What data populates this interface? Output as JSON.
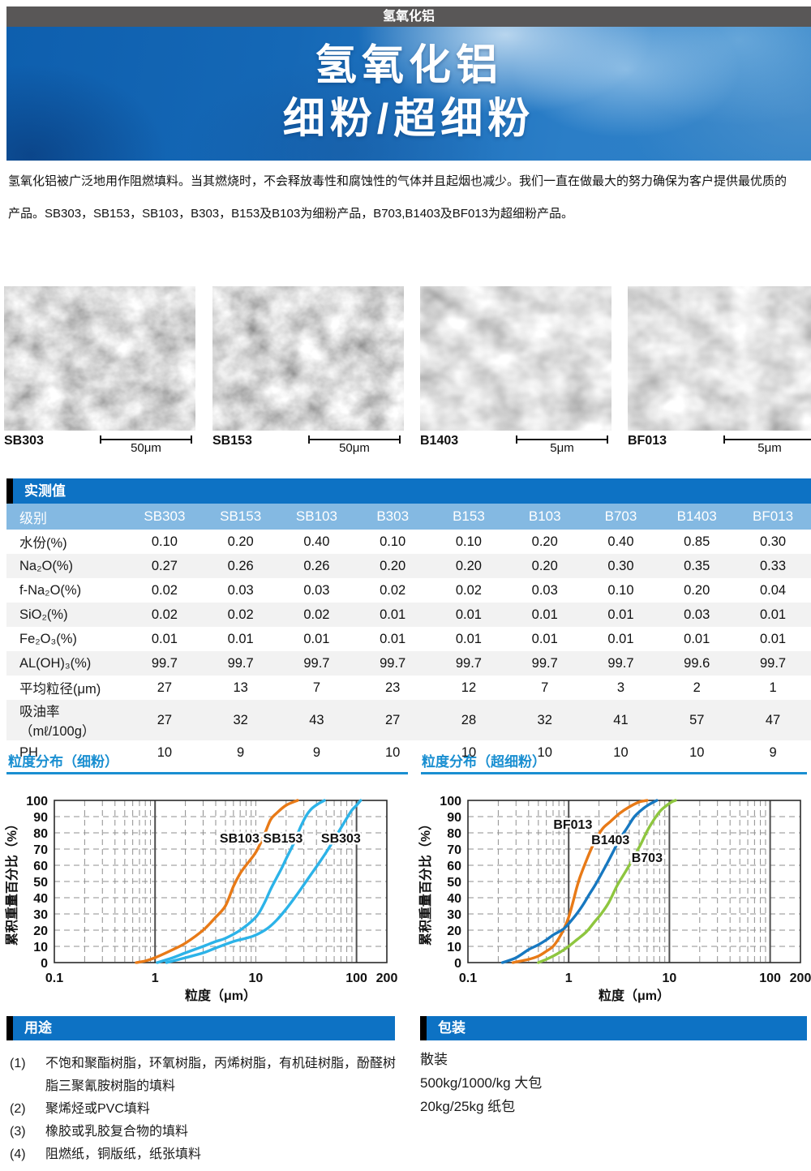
{
  "page": {
    "header_tag": "氢氧化铝"
  },
  "banner": {
    "line1": "氢氧化铝",
    "line2": "细粉/超细粉"
  },
  "intro": {
    "lines": [
      "氢氧化铝被广泛地用作阻燃填料。当其燃烧时，不会释放毒性和腐蚀性的气体并且起烟也减少。我们一直在做最大的努力确保为客户提供最优质的",
      "产品。SB303，SB153，SB103，B303，B153及B103为细粉产品，B703,B1403及BF013为超细粉产品。"
    ]
  },
  "sem_images": [
    {
      "label": "SB303",
      "scale": "50μm"
    },
    {
      "label": "SB153",
      "scale": "50μm"
    },
    {
      "label": "B1403",
      "scale": "5μm"
    },
    {
      "label": "BF013",
      "scale": "5μm"
    }
  ],
  "table": {
    "title": "实测值",
    "corner": "级别",
    "columns": [
      "SB303",
      "SB153",
      "SB103",
      "B303",
      "B153",
      "B103",
      "B703",
      "B1403",
      "BF013"
    ],
    "rows": [
      {
        "label": "水份(%)",
        "values": [
          "0.10",
          "0.20",
          "0.40",
          "0.10",
          "0.10",
          "0.20",
          "0.40",
          "0.85",
          "0.30"
        ]
      },
      {
        "label": "Na₂O(%)",
        "values": [
          "0.27",
          "0.26",
          "0.26",
          "0.20",
          "0.20",
          "0.20",
          "0.30",
          "0.35",
          "0.33"
        ]
      },
      {
        "label": "f-Na₂O(%)",
        "values": [
          "0.02",
          "0.03",
          "0.03",
          "0.02",
          "0.02",
          "0.03",
          "0.10",
          "0.20",
          "0.04"
        ]
      },
      {
        "label": "SiO₂(%)",
        "values": [
          "0.02",
          "0.02",
          "0.02",
          "0.01",
          "0.01",
          "0.01",
          "0.01",
          "0.03",
          "0.01"
        ]
      },
      {
        "label": "Fe₂O₃(%)",
        "values": [
          "0.01",
          "0.01",
          "0.01",
          "0.01",
          "0.01",
          "0.01",
          "0.01",
          "0.01",
          "0.01"
        ]
      },
      {
        "label": "AL(OH)₃(%)",
        "values": [
          "99.7",
          "99.7",
          "99.7",
          "99.7",
          "99.7",
          "99.7",
          "99.7",
          "99.6",
          "99.7"
        ]
      },
      {
        "label": "平均粒径(μm)",
        "values": [
          "27",
          "13",
          "7",
          "23",
          "12",
          "7",
          "3",
          "2",
          "1"
        ]
      },
      {
        "label": "吸油率（mℓ/100g）",
        "values": [
          "27",
          "32",
          "43",
          "27",
          "28",
          "32",
          "41",
          "57",
          "47"
        ]
      },
      {
        "label": "PH",
        "values": [
          "10",
          "9",
          "9",
          "10",
          "10",
          "10",
          "10",
          "10",
          "9"
        ]
      }
    ]
  },
  "chart_data": [
    {
      "type": "line",
      "title": "粒度分布（细粉）",
      "xlabel": "粒度（μm）",
      "ylabel": "累积重量百分比（%）",
      "xscale": "log",
      "xlim": [
        0.1,
        200
      ],
      "ylim": [
        0,
        100
      ],
      "x_ticks": [
        0.1,
        1,
        10,
        100,
        200
      ],
      "y_ticks": [
        0,
        10,
        20,
        30,
        40,
        50,
        60,
        70,
        80,
        90,
        100
      ],
      "grid": "dashed",
      "solid_verticals": [
        1,
        100
      ],
      "legend_position": "inline-labels",
      "series": [
        {
          "name": "SB103",
          "color": "#e87a17",
          "label_at": [
            6.9,
            77
          ],
          "points": [
            [
              0.65,
              0
            ],
            [
              0.8,
              1
            ],
            [
              1,
              3
            ],
            [
              1.5,
              8
            ],
            [
              2,
              12
            ],
            [
              3,
              20
            ],
            [
              4,
              28
            ],
            [
              5,
              35
            ],
            [
              6,
              47
            ],
            [
              7,
              55
            ],
            [
              8,
              60
            ],
            [
              10,
              68
            ],
            [
              12,
              78
            ],
            [
              14,
              88
            ],
            [
              16,
              92
            ],
            [
              20,
              97
            ],
            [
              26,
              100
            ]
          ]
        },
        {
          "name": "SB153",
          "color": "#2cb3e8",
          "label_at": [
            18.6,
            77
          ],
          "points": [
            [
              1.05,
              0
            ],
            [
              1.5,
              3
            ],
            [
              2,
              6
            ],
            [
              3,
              10
            ],
            [
              4,
              13
            ],
            [
              5,
              15
            ],
            [
              7,
              20
            ],
            [
              10,
              28
            ],
            [
              12,
              36
            ],
            [
              14,
              45
            ],
            [
              16,
              52
            ],
            [
              18,
              58
            ],
            [
              20,
              64
            ],
            [
              24,
              74
            ],
            [
              28,
              84
            ],
            [
              32,
              91
            ],
            [
              36,
              95
            ],
            [
              42,
              98
            ],
            [
              48,
              100
            ]
          ]
        },
        {
          "name": "SB303",
          "color": "#2cb3e8",
          "label_at": [
            70,
            77
          ],
          "points": [
            [
              1.3,
              0
            ],
            [
              2,
              3
            ],
            [
              3,
              6
            ],
            [
              4,
              9
            ],
            [
              6,
              13
            ],
            [
              8,
              15
            ],
            [
              10,
              17
            ],
            [
              13,
              21
            ],
            [
              16,
              26
            ],
            [
              20,
              33
            ],
            [
              25,
              41
            ],
            [
              30,
              48
            ],
            [
              35,
              54
            ],
            [
              42,
              61
            ],
            [
              50,
              68
            ],
            [
              60,
              76
            ],
            [
              70,
              83
            ],
            [
              80,
              89
            ],
            [
              90,
              94
            ],
            [
              100,
              97
            ],
            [
              110,
              100
            ]
          ]
        }
      ]
    },
    {
      "type": "line",
      "title": "粒度分布（超细粉）",
      "xlabel": "粒度（μm）",
      "ylabel": "累积重量百分比（%）",
      "xscale": "log",
      "xlim": [
        0.1,
        200
      ],
      "ylim": [
        0,
        100
      ],
      "x_ticks": [
        0.1,
        1,
        10,
        100,
        200
      ],
      "y_ticks": [
        0,
        10,
        20,
        30,
        40,
        50,
        60,
        70,
        80,
        90,
        100
      ],
      "grid": "dashed",
      "solid_verticals": [
        1,
        10,
        100
      ],
      "legend_position": "inline-labels",
      "series": [
        {
          "name": "BF013",
          "color": "#e87a17",
          "label_at": [
            1.1,
            85.5
          ],
          "points": [
            [
              0.28,
              0
            ],
            [
              0.4,
              2
            ],
            [
              0.5,
              4
            ],
            [
              0.6,
              7
            ],
            [
              0.7,
              10
            ],
            [
              0.8,
              15
            ],
            [
              0.9,
              21
            ],
            [
              1.0,
              28
            ],
            [
              1.1,
              37
            ],
            [
              1.2,
              46
            ],
            [
              1.3,
              53
            ],
            [
              1.5,
              63
            ],
            [
              1.7,
              71
            ],
            [
              1.9,
              77
            ],
            [
              2.2,
              83
            ],
            [
              2.6,
              87
            ],
            [
              3.2,
              92
            ],
            [
              4,
              96
            ],
            [
              5,
              99
            ],
            [
              6,
              100
            ]
          ]
        },
        {
          "name": "B1403",
          "color": "#1778c0",
          "label_at": [
            2.6,
            76
          ],
          "points": [
            [
              0.22,
              0
            ],
            [
              0.3,
              3
            ],
            [
              0.4,
              8
            ],
            [
              0.5,
              11
            ],
            [
              0.6,
              14
            ],
            [
              0.7,
              17
            ],
            [
              0.8,
              19
            ],
            [
              0.9,
              21
            ],
            [
              1.0,
              24
            ],
            [
              1.2,
              30
            ],
            [
              1.4,
              36
            ],
            [
              1.6,
              42
            ],
            [
              1.8,
              47
            ],
            [
              2.0,
              52
            ],
            [
              2.4,
              61
            ],
            [
              2.8,
              69
            ],
            [
              3.2,
              76
            ],
            [
              3.8,
              83
            ],
            [
              4.5,
              90
            ],
            [
              5.5,
              95
            ],
            [
              6.5,
              98
            ],
            [
              7.5,
              100
            ]
          ]
        },
        {
          "name": "B703",
          "color": "#8ec63f",
          "label_at": [
            6.0,
            65
          ],
          "points": [
            [
              0.5,
              0
            ],
            [
              0.6,
              2
            ],
            [
              0.7,
              4
            ],
            [
              0.8,
              6
            ],
            [
              0.9,
              8
            ],
            [
              1.0,
              10
            ],
            [
              1.2,
              14
            ],
            [
              1.5,
              19
            ],
            [
              1.8,
              25
            ],
            [
              2.1,
              30
            ],
            [
              2.5,
              37
            ],
            [
              3.0,
              47
            ],
            [
              3.5,
              54
            ],
            [
              4.0,
              60
            ],
            [
              4.6,
              67
            ],
            [
              5.2,
              73
            ],
            [
              6.0,
              81
            ],
            [
              7.0,
              88
            ],
            [
              8.0,
              93
            ],
            [
              9.0,
              96
            ],
            [
              10.5,
              99
            ],
            [
              11.5,
              100
            ]
          ]
        }
      ]
    }
  ],
  "uses": {
    "title": "用途",
    "items": [
      {
        "num": "(1)",
        "text": "不饱和聚酯树脂，环氧树脂，丙烯树脂，有机硅树脂，酚醛树脂三聚氰胺树脂的填料"
      },
      {
        "num": "(2)",
        "text": "聚烯烃或PVC填料"
      },
      {
        "num": "(3)",
        "text": "橡胶或乳胶复合物的填料"
      },
      {
        "num": "(4)",
        "text": "阻燃纸，铜版纸，纸张填料"
      }
    ]
  },
  "packaging": {
    "title": "包装",
    "lines": [
      "散装",
      "500kg/1000/kg 大包",
      "20kg/25kg 纸包"
    ]
  },
  "colors": {
    "accent_blue": "#0d72c4",
    "table_header_light_blue": "#84b9e2",
    "chart_title_blue": "#1a8fd1",
    "topbar_gray": "#595757",
    "orange": "#e87a17",
    "cyan": "#2cb3e8",
    "blue": "#1778c0",
    "green": "#8ec63f"
  }
}
